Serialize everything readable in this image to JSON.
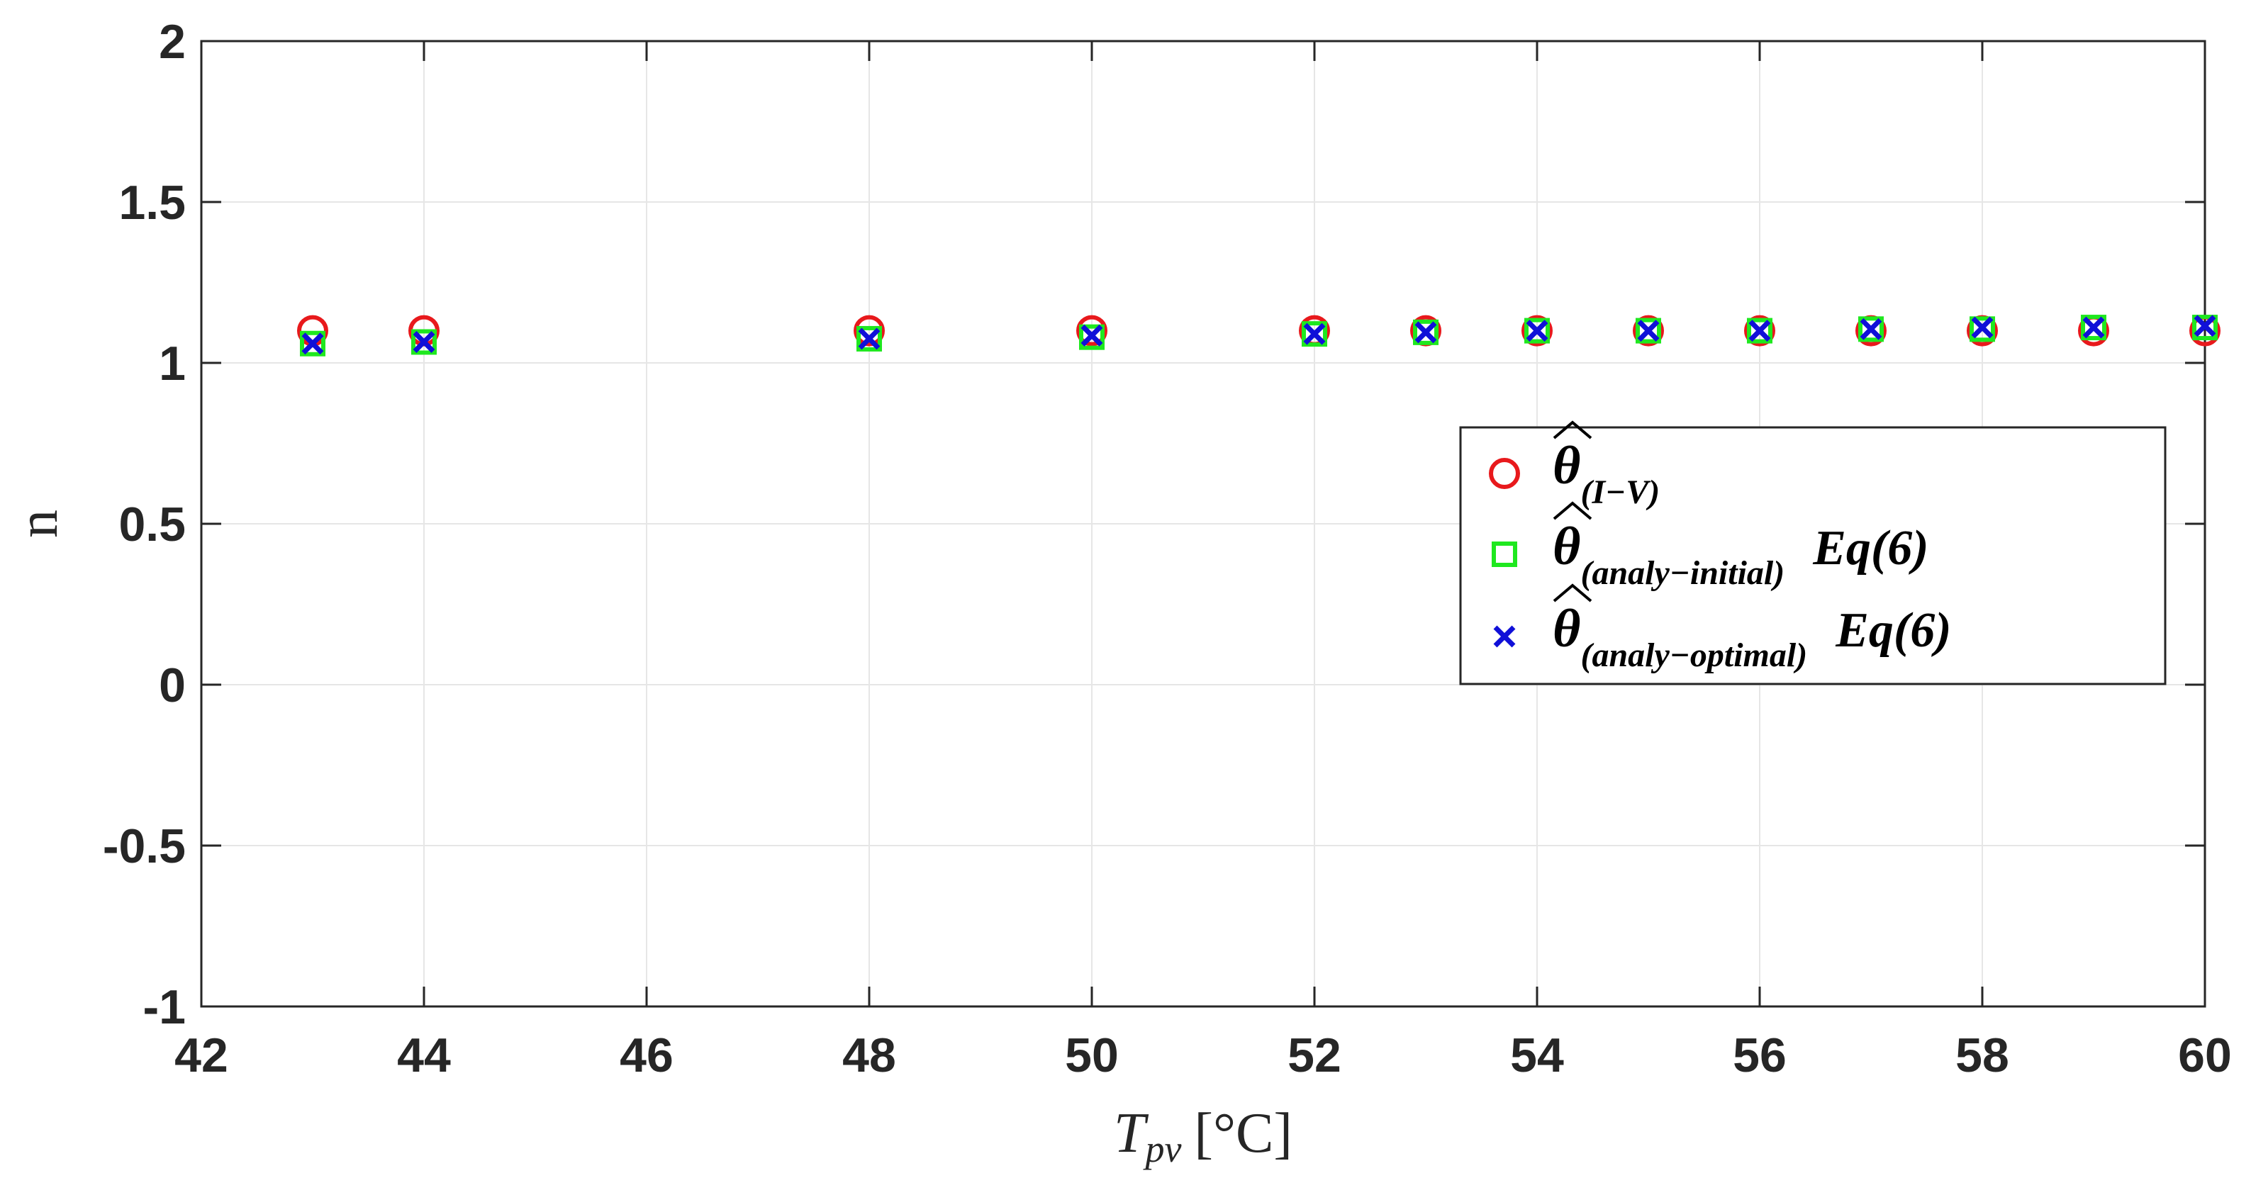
{
  "chart_data": {
    "type": "scatter",
    "title": "",
    "xlabel_main": "T",
    "xlabel_sub": "pv",
    "xlabel_unit": "[°C]",
    "ylabel": "n",
    "xlim": [
      42,
      60
    ],
    "ylim": [
      -1,
      2
    ],
    "xticks": [
      42,
      44,
      46,
      48,
      50,
      52,
      54,
      56,
      58,
      60
    ],
    "xtick_labels": [
      "42",
      "44",
      "46",
      "48",
      "50",
      "52",
      "54",
      "56",
      "58",
      "60"
    ],
    "yticks": [
      2,
      1.5,
      1,
      0.5,
      0,
      -0.5,
      -1
    ],
    "ytick_labels": [
      "2",
      "1.5",
      "1",
      "0.5",
      "0",
      "-0.5",
      "-1"
    ],
    "grid": true,
    "legend_position": "right-middle",
    "series": [
      {
        "name": "θ̂(I−V)",
        "label_symbol": "θ",
        "label_subscript": "(I−V)",
        "label_suffix": "",
        "marker": "circle",
        "color": "#e8191c",
        "x": [
          43,
          44,
          48,
          50,
          52,
          53,
          54,
          55,
          56,
          57,
          58,
          59,
          60
        ],
        "y": [
          1.1,
          1.1,
          1.1,
          1.1,
          1.1,
          1.1,
          1.1,
          1.1,
          1.1,
          1.1,
          1.1,
          1.1,
          1.1
        ]
      },
      {
        "name": "θ̂(analy−initial) Eq(6)",
        "label_symbol": "θ",
        "label_subscript": "(analy−initial)",
        "label_suffix": "Eq(6)",
        "marker": "square",
        "color": "#1fe81f",
        "x": [
          43,
          44,
          48,
          50,
          52,
          53,
          54,
          55,
          56,
          57,
          58,
          59,
          60
        ],
        "y": [
          1.06,
          1.065,
          1.075,
          1.08,
          1.09,
          1.095,
          1.1,
          1.1,
          1.1,
          1.105,
          1.105,
          1.11,
          1.11
        ]
      },
      {
        "name": "θ̂(analy−optimal) Eq(6)",
        "label_symbol": "θ",
        "label_subscript": "(analy−optimal)",
        "label_suffix": "Eq(6)",
        "marker": "x",
        "color": "#1010d8",
        "x": [
          43,
          44,
          48,
          50,
          52,
          53,
          54,
          55,
          56,
          57,
          58,
          59,
          60
        ],
        "y": [
          1.06,
          1.065,
          1.075,
          1.085,
          1.09,
          1.095,
          1.1,
          1.1,
          1.1,
          1.105,
          1.11,
          1.11,
          1.115
        ]
      }
    ]
  }
}
